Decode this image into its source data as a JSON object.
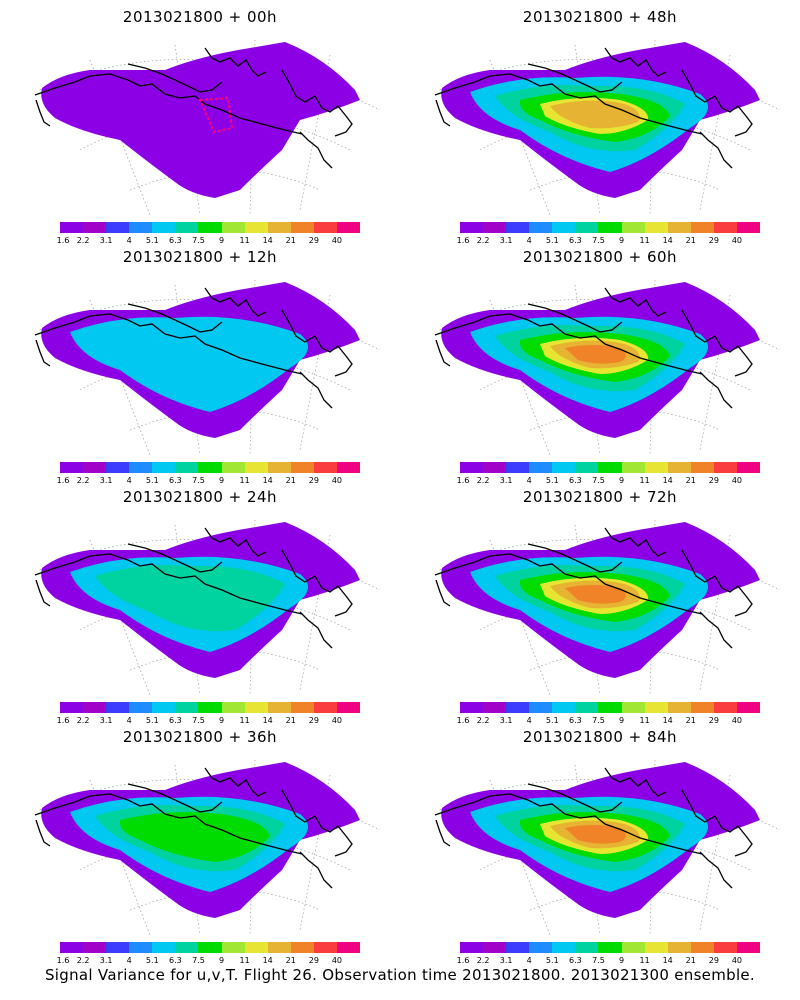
{
  "panels": [
    {
      "title": "2013021800 + 00h",
      "level": 1,
      "track": true
    },
    {
      "title": "2013021800 + 48h",
      "level": 6,
      "track": false
    },
    {
      "title": "2013021800 + 12h",
      "level": 2,
      "track": false
    },
    {
      "title": "2013021800 + 60h",
      "level": 7,
      "track": false
    },
    {
      "title": "2013021800 + 24h",
      "level": 3,
      "track": false
    },
    {
      "title": "2013021800 + 72h",
      "level": 7,
      "track": false
    },
    {
      "title": "2013021800 + 36h",
      "level": 4,
      "track": false
    },
    {
      "title": "2013021800 + 84h",
      "level": 8,
      "track": false
    }
  ],
  "colorbar": {
    "labels": [
      "1.6",
      "2.2",
      "3.1",
      "4",
      "5.1",
      "6.3",
      "7.5",
      "9",
      "11",
      "14",
      "21",
      "29",
      "40"
    ],
    "colors": [
      "#8c00e6",
      "#a000c8",
      "#3c3cff",
      "#1e8cff",
      "#00c8f0",
      "#00d2a0",
      "#00dc00",
      "#a0e632",
      "#e6e632",
      "#e6b432",
      "#f08228",
      "#fa3c3c",
      "#f00082"
    ]
  },
  "caption": "Signal Variance for u,v,T. Flight 26. Observation time 2013021800. 2013021300 ensemble."
}
